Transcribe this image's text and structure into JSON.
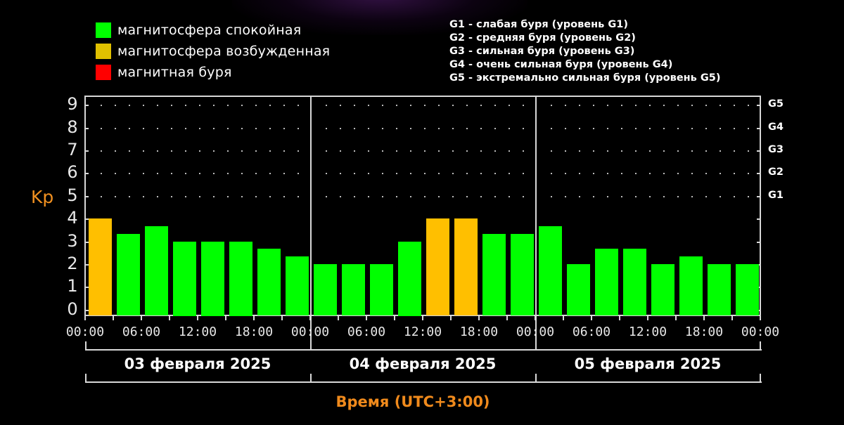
{
  "legend": {
    "items": [
      {
        "label": "магнитосфера спокойная",
        "color": "#00ff00"
      },
      {
        "label": "магнитосфера возбужденная",
        "color": "#e0c000"
      },
      {
        "label": "магнитная буря",
        "color": "#ff0000"
      }
    ],
    "storm_levels": [
      "G1 - слабая буря (уровень G1)",
      "G2 - средняя буря (уровень G2)",
      "G3 - сильная буря (уровень G3)",
      "G4 - очень сильная буря (уровень G4)",
      "G5 - экстремально сильная буря (уровень G5)"
    ]
  },
  "axes": {
    "y_label": "Kp",
    "y_ticks": [
      "0",
      "1",
      "2",
      "3",
      "4",
      "5",
      "6",
      "7",
      "8",
      "9"
    ],
    "g_ticks": [
      {
        "label": "G1",
        "value": 5
      },
      {
        "label": "G2",
        "value": 6
      },
      {
        "label": "G3",
        "value": 7
      },
      {
        "label": "G4",
        "value": 8
      },
      {
        "label": "G5",
        "value": 9
      }
    ],
    "x_ticks": [
      "00:00",
      "06:00",
      "12:00",
      "18:00",
      "00:00",
      "06:00",
      "12:00",
      "18:00",
      "00:00",
      "06:00",
      "12:00",
      "18:00",
      "00:00"
    ],
    "x_title": "Время (UTC+3:00)",
    "days": [
      "03 февраля 2025",
      "04 февраля 2025",
      "05 февраля 2025"
    ]
  },
  "colors": {
    "quiet": "#00ff00",
    "excited": "#ffbf00",
    "storm": "#ff0000",
    "axis_label": "#f08a1c"
  },
  "chart_data": {
    "type": "bar",
    "title": "",
    "xlabel": "Время (UTC+3:00)",
    "ylabel": "Kp",
    "ylim": [
      0,
      9
    ],
    "grid": "dotted horizontal at 5,6,7,8,9",
    "legend_position": "top",
    "categories": [
      "03.02 00-03",
      "03.02 03-06",
      "03.02 06-09",
      "03.02 09-12",
      "03.02 12-15",
      "03.02 15-18",
      "03.02 18-21",
      "03.02 21-24",
      "04.02 00-03",
      "04.02 03-06",
      "04.02 06-09",
      "04.02 09-12",
      "04.02 12-15",
      "04.02 15-18",
      "04.02 18-21",
      "04.02 21-24",
      "05.02 00-03",
      "05.02 03-06",
      "05.02 06-09",
      "05.02 09-12",
      "05.02 12-15",
      "05.02 15-18",
      "05.02 18-21",
      "05.02 21-24"
    ],
    "values": [
      4,
      3.33,
      3.67,
      3,
      3,
      3,
      2.67,
      2.33,
      2,
      2,
      2,
      3,
      4,
      4,
      3.33,
      3.33,
      3.67,
      2,
      2.67,
      2.67,
      2,
      2.33,
      2,
      2
    ],
    "status": [
      "excited",
      "quiet",
      "quiet",
      "quiet",
      "quiet",
      "quiet",
      "quiet",
      "quiet",
      "quiet",
      "quiet",
      "quiet",
      "quiet",
      "excited",
      "excited",
      "quiet",
      "quiet",
      "quiet",
      "quiet",
      "quiet",
      "quiet",
      "quiet",
      "quiet",
      "quiet",
      "quiet"
    ]
  }
}
